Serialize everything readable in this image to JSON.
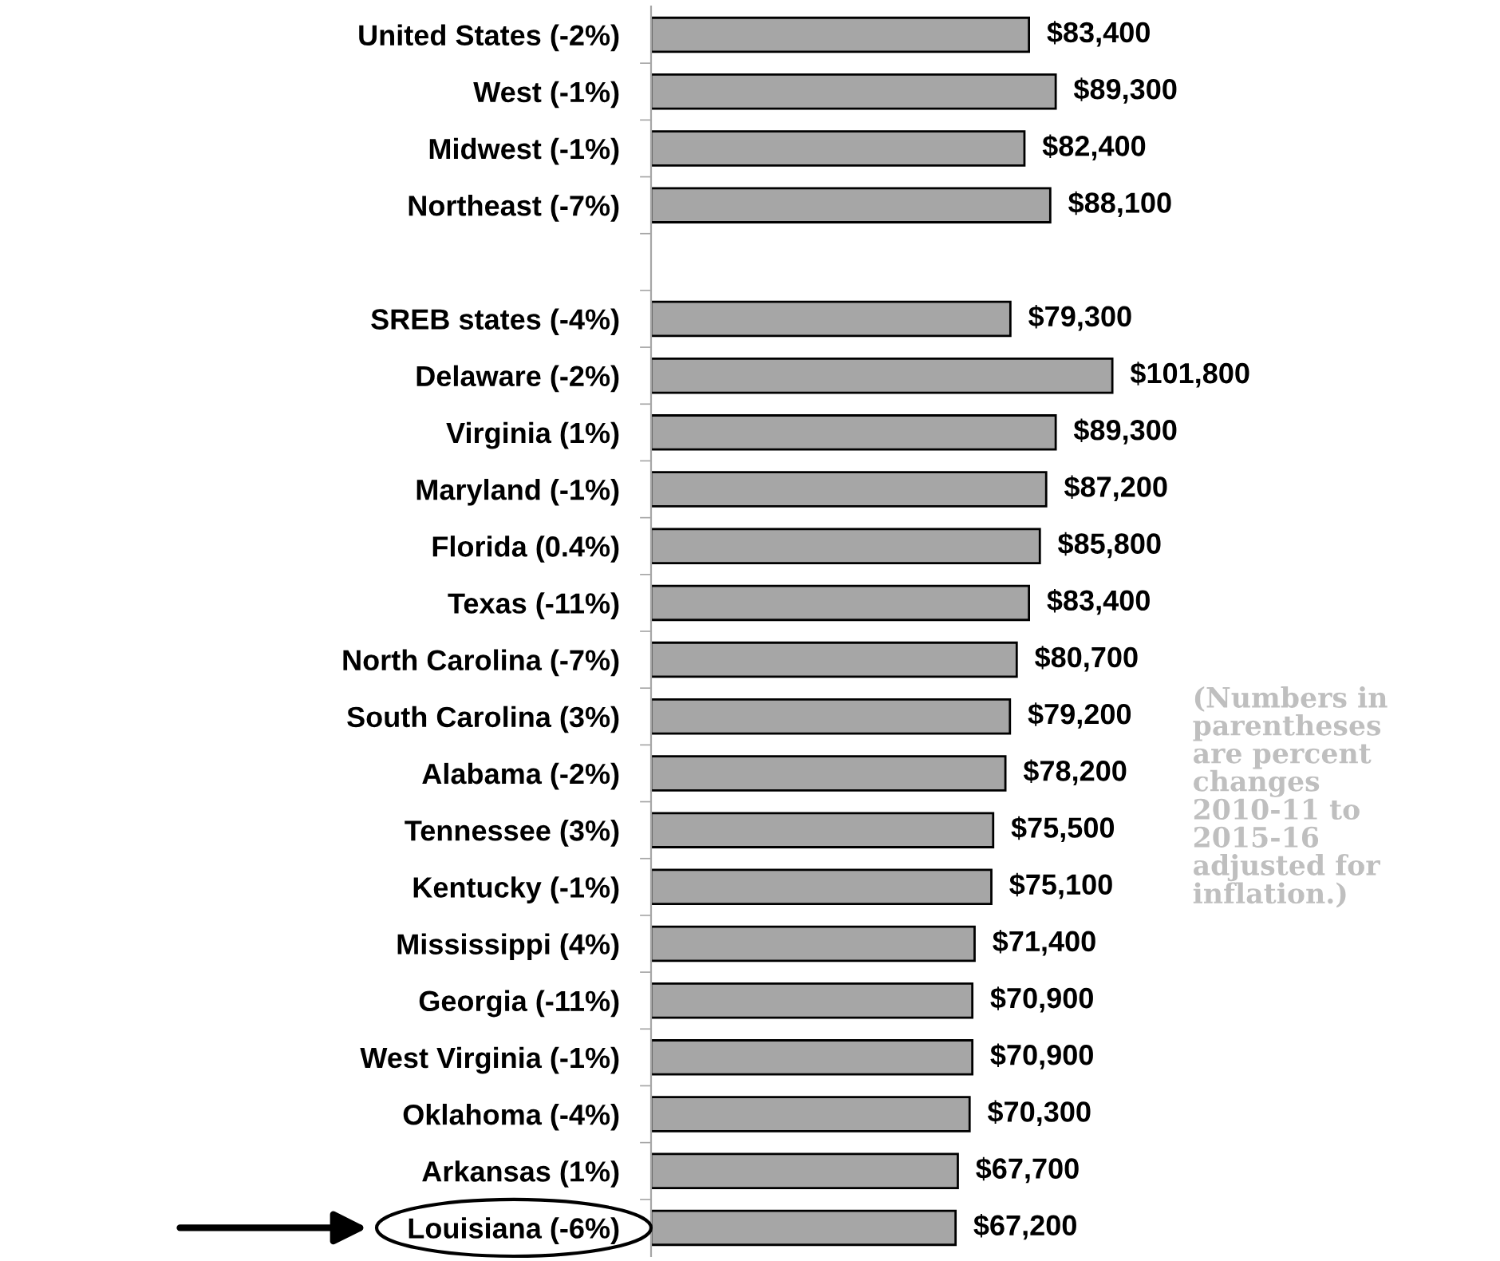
{
  "chart_data": {
    "type": "bar",
    "orientation": "horizontal",
    "categories": [
      "United States (-2%)",
      "West (-1%)",
      "Midwest (-1%)",
      "Northeast (-7%)",
      null,
      "SREB states (-4%)",
      "Delaware (-2%)",
      "Virginia (1%)",
      "Maryland (-1%)",
      "Florida (0.4%)",
      "Texas (-11%)",
      "North Carolina (-7%)",
      "South Carolina (3%)",
      "Alabama (-2%)",
      "Tennessee (3%)",
      "Kentucky (-1%)",
      "Mississippi (4%)",
      "Georgia (-11%)",
      "West Virginia (-1%)",
      "Oklahoma (-4%)",
      "Arkansas (1%)",
      "Louisiana (-6%)"
    ],
    "values": [
      83400,
      89300,
      82400,
      88100,
      null,
      79300,
      101800,
      89300,
      87200,
      85800,
      83400,
      80700,
      79200,
      78200,
      75500,
      75100,
      71400,
      70900,
      70900,
      70300,
      67700,
      67200
    ],
    "value_labels": [
      "$83,400",
      "$89,300",
      "$82,400",
      "$88,100",
      null,
      "$79,300",
      "$101,800",
      "$89,300",
      "$87,200",
      "$85,800",
      "$83,400",
      "$80,700",
      "$79,200",
      "$78,200",
      "$75,500",
      "$75,100",
      "$71,400",
      "$70,900",
      "$70,900",
      "$70,300",
      "$67,700",
      "$67,200"
    ],
    "color": "#a6a6a6",
    "annotations": [
      "(Numbers in\nparentheses\nare percent\nchanges\n2010-11 to\n2015-16\nadjusted for\ninflation.)"
    ],
    "grid": false,
    "legend": false
  }
}
